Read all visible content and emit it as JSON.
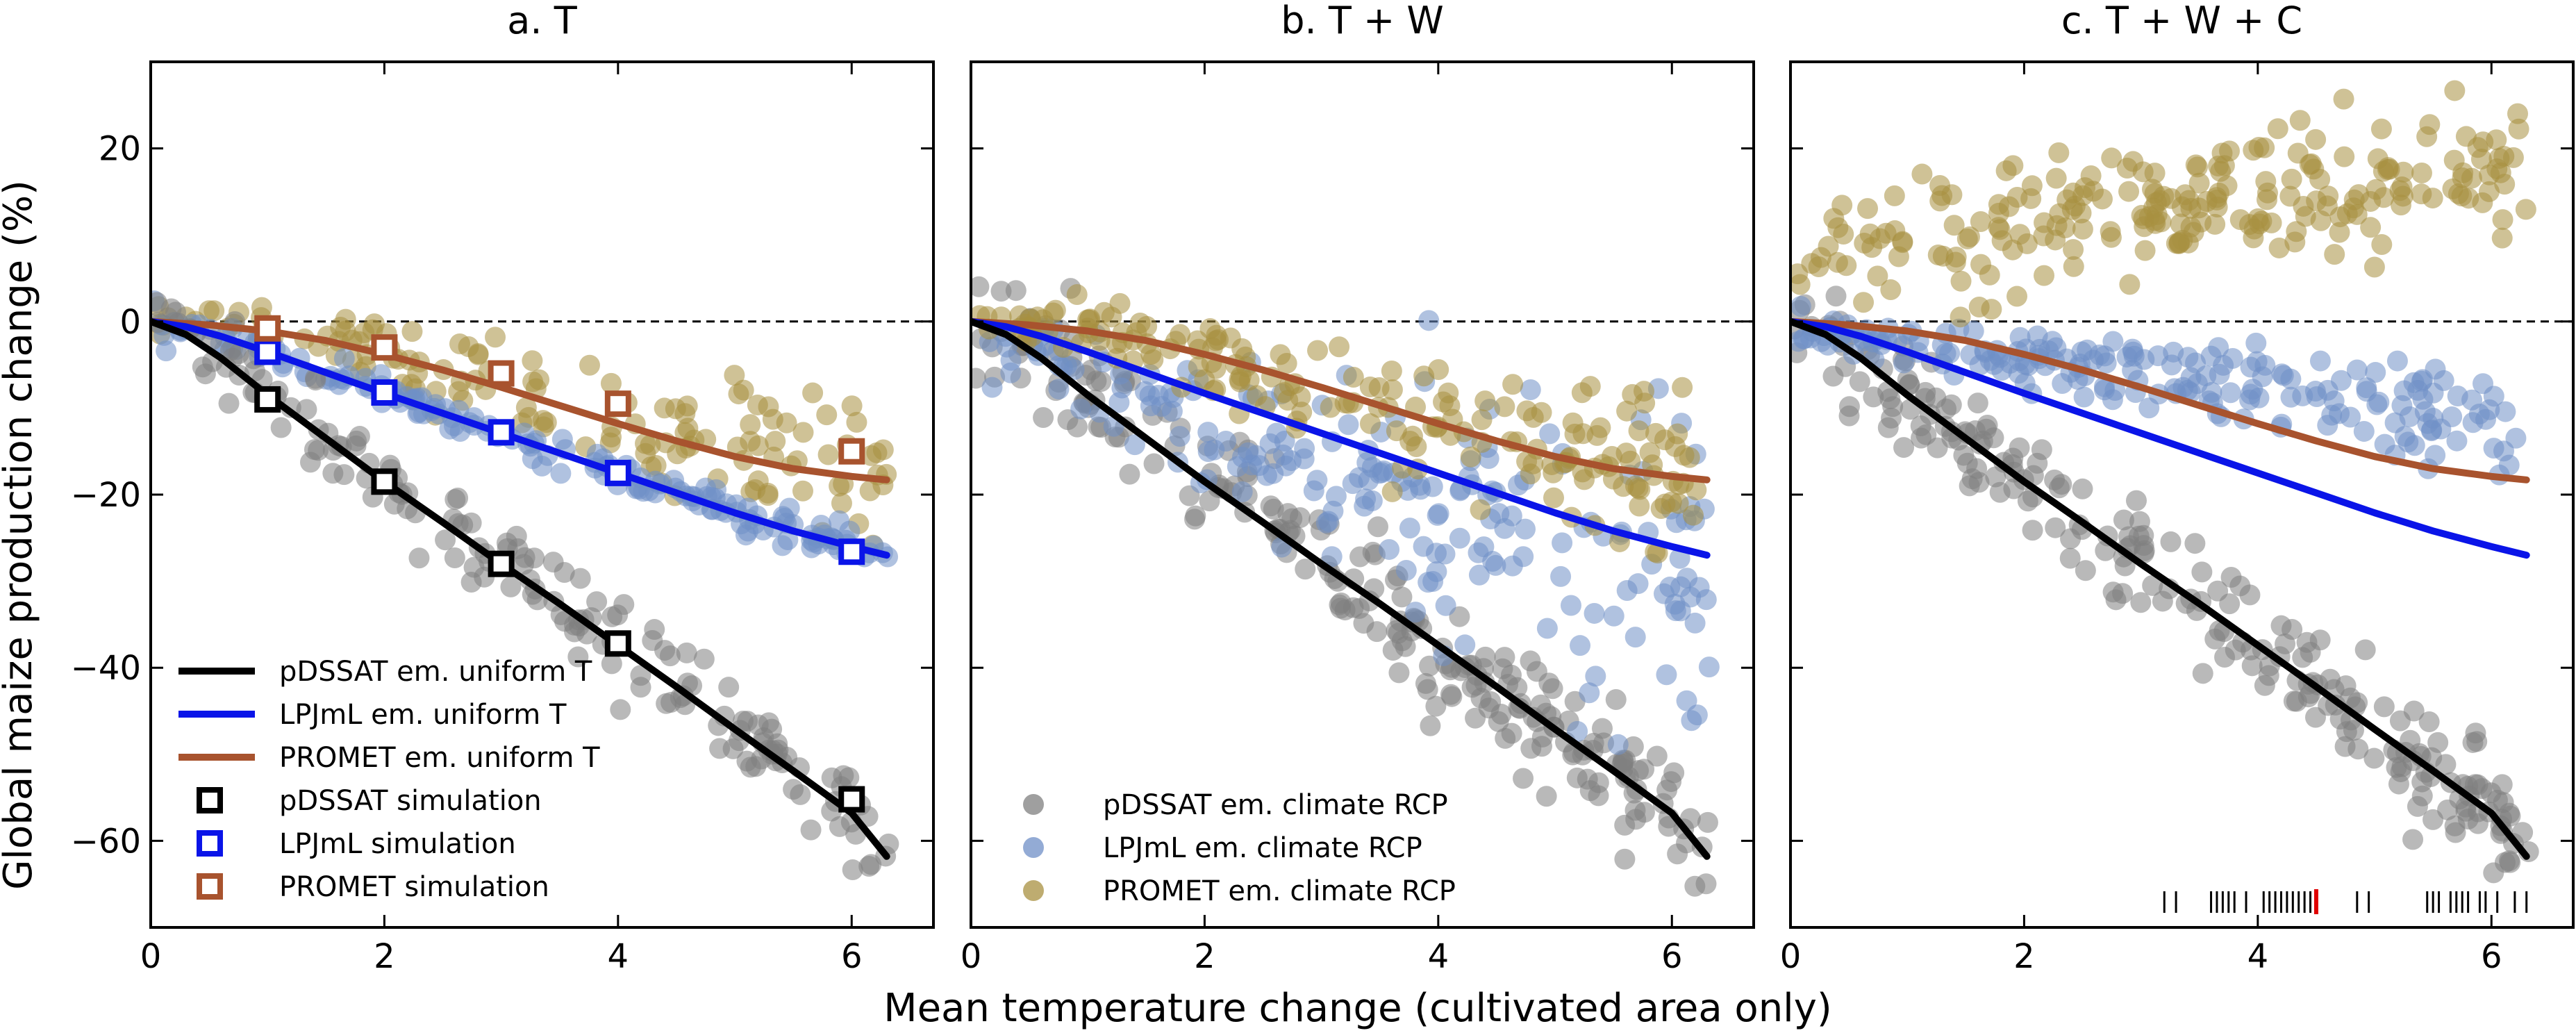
{
  "figure": {
    "ylabel": "Global maize production change (%)",
    "xlabel": "Mean temperature change (cultivated area only)"
  },
  "chart_data": [
    {
      "type": "scatter",
      "title": "a. T",
      "xlim": [
        0,
        6.7
      ],
      "ylim": [
        -70,
        30
      ],
      "xticks": [
        0,
        2,
        4,
        6
      ],
      "yticks": [
        20,
        0,
        -20,
        -40,
        -60
      ],
      "legend_placement": "lower-left",
      "legend": [
        {
          "label": "pDSSAT em. uniform T",
          "kind": "line",
          "color": "#000000"
        },
        {
          "label": "LPJmL em. uniform T",
          "kind": "line",
          "color": "#0a14e8"
        },
        {
          "label": "PROMET em. uniform T",
          "kind": "line",
          "color": "#a8532e"
        },
        {
          "label": "pDSSAT simulation",
          "kind": "square",
          "color": "#000000"
        },
        {
          "label": "LPJmL simulation",
          "kind": "square",
          "color": "#0a14e8"
        },
        {
          "label": "PROMET simulation",
          "kind": "square",
          "color": "#a8532e"
        }
      ],
      "simulation_points": [
        {
          "model": "pDSSAT",
          "x": [
            1,
            2,
            3,
            4,
            6
          ],
          "y": [
            -9,
            -18.5,
            -28,
            -37.2,
            -55.2
          ]
        },
        {
          "model": "LPJmL",
          "x": [
            1,
            2,
            3,
            4,
            6
          ],
          "y": [
            -3.5,
            -8.2,
            -12.8,
            -17.5,
            -26.6
          ]
        },
        {
          "model": "PROMET",
          "x": [
            1,
            2,
            3,
            4,
            6
          ],
          "y": [
            -0.8,
            -3,
            -6,
            -9.5,
            -15
          ]
        }
      ]
    },
    {
      "type": "scatter",
      "title": "b. T + W",
      "xlim": [
        0,
        6.7
      ],
      "ylim": [
        -70,
        30
      ],
      "xticks": [
        0,
        2,
        4,
        6
      ],
      "yticks": [
        20,
        0,
        -20,
        -40,
        -60
      ],
      "legend_placement": "lower-left",
      "legend": [
        {
          "label": "pDSSAT em. climate RCP",
          "kind": "dot",
          "color": "#7f7f7f"
        },
        {
          "label": "LPJmL em. climate RCP",
          "kind": "dot",
          "color": "#6f8fc7"
        },
        {
          "label": "PROMET em. climate RCP",
          "kind": "dot",
          "color": "#a89040"
        }
      ]
    },
    {
      "type": "scatter",
      "title": "c. T + W + C",
      "xlim": [
        0,
        6.7
      ],
      "ylim": [
        -70,
        30
      ],
      "xticks": [
        0,
        2,
        4,
        6
      ],
      "yticks": [
        20,
        0,
        -20,
        -40,
        -60
      ],
      "rug_ticks": [
        3.2,
        3.3,
        3.6,
        3.65,
        3.7,
        3.75,
        3.8,
        3.9,
        4.05,
        4.1,
        4.15,
        4.2,
        4.25,
        4.3,
        4.35,
        4.4,
        4.45,
        4.85,
        4.95,
        5.45,
        5.5,
        5.55,
        5.65,
        5.7,
        5.75,
        5.8,
        5.9,
        5.95,
        6.05,
        6.2,
        6.3
      ],
      "rug_highlight": 4.5
    }
  ],
  "curves": {
    "pDSSAT": {
      "color": "#000000",
      "x": [
        0,
        0.3,
        0.6,
        1,
        1.5,
        2,
        2.5,
        3,
        3.5,
        4,
        4.5,
        5,
        5.5,
        6,
        6.3
      ],
      "y": [
        0,
        -1.5,
        -4.2,
        -8.5,
        -13.5,
        -18.5,
        -23.2,
        -28,
        -32.6,
        -37.4,
        -42.2,
        -47.1,
        -51.9,
        -56.8,
        -61.8
      ]
    },
    "LPJmL": {
      "color": "#0a14e8",
      "x": [
        0,
        0.3,
        0.6,
        1,
        1.5,
        2,
        2.5,
        3,
        3.5,
        4,
        4.5,
        5,
        5.5,
        6,
        6.3
      ],
      "y": [
        0,
        -0.6,
        -1.7,
        -3.5,
        -5.9,
        -8.3,
        -10.6,
        -12.9,
        -15.2,
        -17.5,
        -19.8,
        -22.1,
        -24.2,
        -26.0,
        -27.0
      ]
    },
    "PROMET": {
      "color": "#a8532e",
      "x": [
        0,
        0.5,
        1,
        1.5,
        2,
        2.5,
        3,
        3.5,
        4,
        4.5,
        5,
        5.5,
        6,
        6.3
      ],
      "y": [
        0,
        -0.4,
        -1.1,
        -2.2,
        -3.8,
        -5.6,
        -7.6,
        -9.7,
        -11.8,
        -13.8,
        -15.6,
        -17.0,
        -17.9,
        -18.3
      ]
    }
  },
  "scatter_colors": {
    "pDSSAT": "#7f7f7f",
    "LPJmL": "#6f8fc7",
    "PROMET": "#a89040"
  }
}
